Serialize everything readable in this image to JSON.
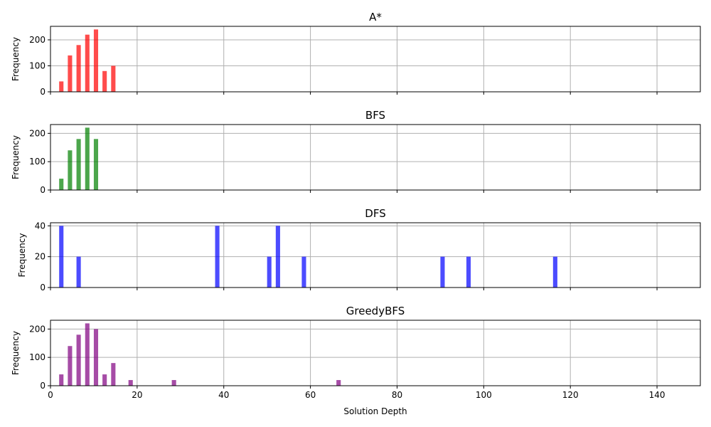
{
  "chart_data": {
    "type": "bar",
    "xlabel": "Solution Depth",
    "xlim": [
      0,
      150
    ],
    "xticks": [
      0,
      20,
      40,
      60,
      80,
      100,
      120,
      140
    ],
    "grid": true,
    "bar_width": 1.0,
    "panels": [
      {
        "title": "A*",
        "ylabel": "Frequency",
        "color": "#ff0000",
        "ylim": [
          0,
          252
        ],
        "yticks": [
          0,
          100,
          200
        ],
        "x": [
          2.5,
          4.5,
          6.5,
          8.5,
          10.5,
          12.5,
          14.5
        ],
        "values": [
          40,
          140,
          180,
          220,
          240,
          80,
          100
        ]
      },
      {
        "title": "BFS",
        "ylabel": "Frequency",
        "color": "#008000",
        "ylim": [
          0,
          231
        ],
        "yticks": [
          0,
          100,
          200
        ],
        "x": [
          2.5,
          4.5,
          6.5,
          8.5,
          10.5
        ],
        "values": [
          40,
          140,
          180,
          220,
          180
        ]
      },
      {
        "title": "DFS",
        "ylabel": "Frequency",
        "color": "#0000ff",
        "ylim": [
          0,
          42
        ],
        "yticks": [
          0,
          20,
          40
        ],
        "x": [
          2.5,
          6.5,
          38.5,
          50.5,
          52.5,
          58.5,
          90.5,
          96.5,
          116.5
        ],
        "values": [
          40,
          20,
          40,
          20,
          40,
          20,
          20,
          20,
          20
        ]
      },
      {
        "title": "GreedyBFS",
        "ylabel": "Frequency",
        "color": "#800080",
        "ylim": [
          0,
          231
        ],
        "yticks": [
          0,
          100,
          200
        ],
        "x": [
          2.5,
          4.5,
          6.5,
          8.5,
          10.5,
          12.5,
          14.5,
          18.5,
          28.5,
          66.5
        ],
        "values": [
          40,
          140,
          180,
          220,
          200,
          40,
          80,
          20,
          20,
          20
        ]
      }
    ]
  }
}
